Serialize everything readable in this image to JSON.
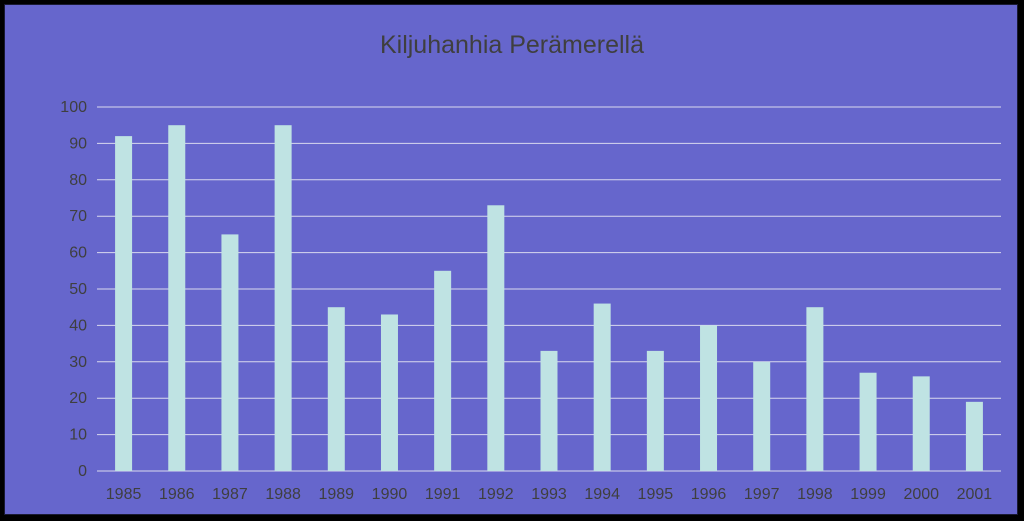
{
  "chart_data": {
    "type": "bar",
    "title": "Kiljuhanhia Perämerellä",
    "xlabel": "",
    "ylabel": "",
    "categories": [
      "1985",
      "1986",
      "1987",
      "1988",
      "1989",
      "1990",
      "1991",
      "1992",
      "1993",
      "1994",
      "1995",
      "1996",
      "1997",
      "1998",
      "1999",
      "2000",
      "2001"
    ],
    "values": [
      92,
      95,
      65,
      95,
      45,
      43,
      55,
      73,
      33,
      46,
      33,
      40,
      30,
      45,
      27,
      26,
      19
    ],
    "ylim": [
      0,
      100
    ],
    "yticks": [
      0,
      10,
      20,
      30,
      40,
      50,
      60,
      70,
      80,
      90,
      100
    ],
    "grid": true,
    "legend": "none",
    "colors": {
      "background": "#6666cc",
      "bar": "#bfe3e3",
      "grid": "#d9d9ee",
      "text": "#3f3f3f",
      "frame": "#000000"
    }
  }
}
